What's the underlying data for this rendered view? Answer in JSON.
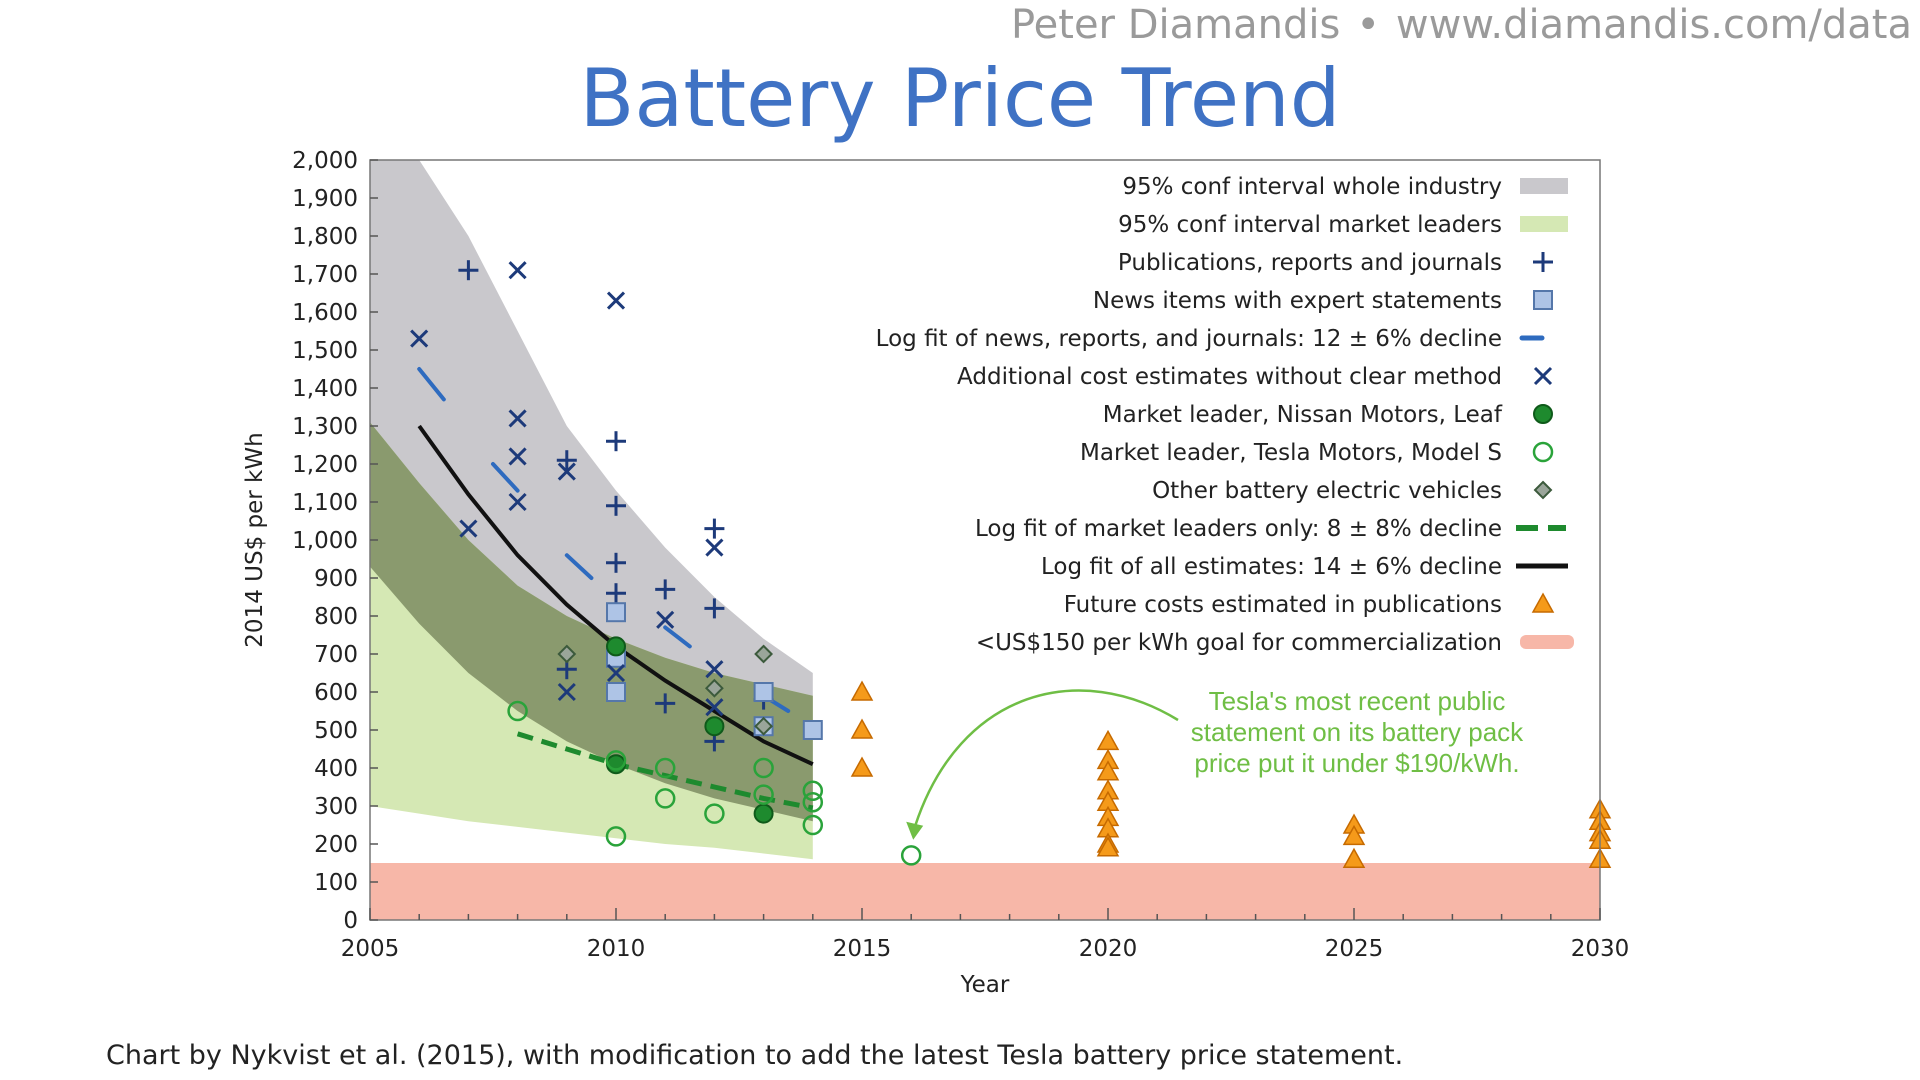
{
  "header": {
    "author": "Peter Diamandis",
    "separator": "•",
    "url": "www.diamandis.com/data"
  },
  "caption": "Chart by Nykvist et al. (2015), with modification to add the latest Tesla battery price statement.",
  "chart_data": {
    "type": "scatter",
    "title": "Battery Price Trend",
    "xlabel": "Year",
    "ylabel": "2014 US$ per kWh",
    "xlim": [
      2005,
      2030
    ],
    "ylim": [
      0,
      2000
    ],
    "x_ticks": [
      2005,
      2010,
      2015,
      2020,
      2025,
      2030
    ],
    "y_ticks": [
      0,
      100,
      200,
      300,
      400,
      500,
      600,
      700,
      800,
      900,
      1000,
      1100,
      1200,
      1300,
      1400,
      1500,
      1600,
      1700,
      1800,
      1900,
      2000
    ],
    "grid": false,
    "legend_position": "top-right",
    "colors": {
      "band_industry": "#c9c8cc",
      "band_leaders": "#d5e8b4",
      "band_overlap": "#8a9a6e",
      "goal": "#f7b7a8",
      "navy": "#1d3a7a",
      "blue_fit": "#2e6bbf",
      "square_fill": "#aec4e6",
      "square_stroke": "#5577aa",
      "green": "#1e8a2e",
      "orange": "#f59a1a",
      "black": "#111111",
      "annotation": "#6fbe45"
    },
    "legend": [
      {
        "label": "95% conf interval whole industry",
        "marker": "band-gray"
      },
      {
        "label": "95% conf interval market leaders",
        "marker": "band-green"
      },
      {
        "label": "Publications, reports and journals",
        "marker": "plus"
      },
      {
        "label": "News items with expert statements",
        "marker": "square"
      },
      {
        "label": "Log fit of news, reports, and journals: 12 ± 6% decline",
        "marker": "blue-dash"
      },
      {
        "label": "Additional cost estimates without clear method",
        "marker": "x"
      },
      {
        "label": "Market leader, Nissan Motors, Leaf",
        "marker": "filled-circle"
      },
      {
        "label": "Market leader, Tesla Motors, Model S",
        "marker": "open-circle"
      },
      {
        "label": "Other battery electric vehicles",
        "marker": "diamond"
      },
      {
        "label": "Log fit of market leaders only: 8 ± 8% decline",
        "marker": "green-dash"
      },
      {
        "label": "Log fit of all estimates: 14 ± 6% decline",
        "marker": "black-line"
      },
      {
        "label": "Future costs estimated in publications",
        "marker": "triangle"
      },
      {
        "label": "<US$150 per kWh goal for commercialization",
        "marker": "band-red"
      }
    ],
    "industry_band": {
      "x": [
        2005,
        2006,
        2007,
        2008,
        2009,
        2010,
        2011,
        2012,
        2013,
        2014
      ],
      "upper": [
        2000,
        2000,
        1800,
        1550,
        1300,
        1130,
        980,
        850,
        740,
        650
      ],
      "lower": [
        930,
        780,
        650,
        550,
        470,
        410,
        360,
        320,
        290,
        260
      ]
    },
    "leaders_band": {
      "x": [
        2005,
        2006,
        2007,
        2008,
        2009,
        2010,
        2011,
        2012,
        2013,
        2014
      ],
      "upper": [
        1310,
        1150,
        1000,
        880,
        800,
        740,
        690,
        650,
        620,
        590
      ],
      "lower": [
        300,
        280,
        260,
        245,
        230,
        215,
        200,
        190,
        175,
        160
      ]
    },
    "goal_band": {
      "from": 0,
      "to": 150
    },
    "fits": {
      "all_estimates": {
        "x": [
          2006,
          2007,
          2008,
          2009,
          2010,
          2011,
          2012,
          2013,
          2014
        ],
        "y": [
          1300,
          1120,
          960,
          830,
          720,
          630,
          550,
          470,
          410
        ]
      },
      "market_leaders": {
        "x": [
          2008,
          2009,
          2010,
          2011,
          2012,
          2013,
          2014
        ],
        "y": [
          490,
          450,
          410,
          380,
          350,
          320,
          295
        ]
      },
      "news_reports_segments": [
        {
          "x": [
            2006,
            2006.5
          ],
          "y": [
            1450,
            1370
          ]
        },
        {
          "x": [
            2007.5,
            2008
          ],
          "y": [
            1200,
            1130
          ]
        },
        {
          "x": [
            2009,
            2009.5
          ],
          "y": [
            960,
            900
          ]
        },
        {
          "x": [
            2011,
            2011.5
          ],
          "y": [
            770,
            720
          ]
        },
        {
          "x": [
            2013,
            2013.5
          ],
          "y": [
            590,
            550
          ]
        }
      ]
    },
    "series": [
      {
        "name": "Publications, reports and journals",
        "marker": "plus",
        "x": [
          2007,
          2009,
          2009,
          2010,
          2010,
          2010,
          2010,
          2011,
          2011,
          2012,
          2012,
          2012,
          2013
        ],
        "y": [
          1710,
          1210,
          660,
          1260,
          1090,
          940,
          860,
          870,
          570,
          1030,
          820,
          470,
          580
        ]
      },
      {
        "name": "News items with expert statements",
        "marker": "square",
        "x": [
          2010,
          2010,
          2010,
          2013,
          2013,
          2014
        ],
        "y": [
          810,
          690,
          600,
          600,
          510,
          500
        ]
      },
      {
        "name": "Additional cost estimates without clear method",
        "marker": "x",
        "x": [
          2006,
          2007,
          2008,
          2008,
          2008,
          2008,
          2009,
          2009,
          2010,
          2010,
          2011,
          2012,
          2012,
          2012
        ],
        "y": [
          1530,
          1030,
          1710,
          1320,
          1220,
          1100,
          1180,
          600,
          1630,
          650,
          790,
          980,
          660,
          560
        ]
      },
      {
        "name": "Market leader, Nissan Motors, Leaf",
        "marker": "filled-circle",
        "x": [
          2010,
          2010,
          2012,
          2013
        ],
        "y": [
          720,
          410,
          510,
          280
        ]
      },
      {
        "name": "Market leader, Tesla Motors, Model S",
        "marker": "open-circle",
        "x": [
          2008,
          2010,
          2010,
          2011,
          2011,
          2012,
          2013,
          2013,
          2014,
          2014,
          2014,
          2016
        ],
        "y": [
          550,
          420,
          220,
          400,
          320,
          280,
          400,
          330,
          340,
          310,
          250,
          170
        ]
      },
      {
        "name": "Other battery electric vehicles",
        "marker": "diamond",
        "x": [
          2009,
          2012,
          2013,
          2013
        ],
        "y": [
          700,
          610,
          700,
          510
        ]
      },
      {
        "name": "Future costs estimated in publications",
        "marker": "triangle",
        "x": [
          2015,
          2015,
          2015,
          2020,
          2020,
          2020,
          2020,
          2020,
          2020,
          2020,
          2020,
          2020,
          2025,
          2025,
          2025,
          2030,
          2030,
          2030,
          2030,
          2030
        ],
        "y": [
          600,
          500,
          400,
          470,
          420,
          390,
          340,
          310,
          270,
          240,
          200,
          190,
          250,
          220,
          160,
          290,
          260,
          230,
          210,
          160
        ]
      }
    ],
    "annotation": {
      "lines": [
        "Tesla's most recent public",
        "statement on its battery pack",
        "price put it under $190/kWh."
      ],
      "target": {
        "x": 2016,
        "y": 190
      }
    }
  }
}
